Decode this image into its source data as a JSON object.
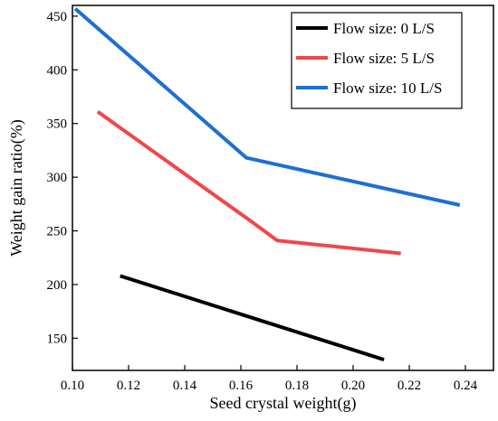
{
  "chart_data": {
    "type": "line",
    "title": "",
    "xlabel": "Seed crystal weight(g)",
    "ylabel": "Weight gain ratio(%)",
    "xlim": [
      0.1,
      0.25
    ],
    "ylim": [
      120,
      460
    ],
    "xticks": [
      "0.10",
      "0.12",
      "0.14",
      "0.16",
      "0.18",
      "0.20",
      "0.22",
      "0.24"
    ],
    "yticks": [
      "150",
      "200",
      "250",
      "300",
      "350",
      "400",
      "450"
    ],
    "grid": false,
    "legend_position": "top-right",
    "series": [
      {
        "name": "Flow size: 0 L/S",
        "color": "#000000",
        "x": [
          0.117,
          0.211
        ],
        "y": [
          208,
          130
        ]
      },
      {
        "name": "Flow size: 5 L/S",
        "color": "#f0474a",
        "x": [
          0.109,
          0.162,
          0.173,
          0.217
        ],
        "y": [
          361,
          262,
          241,
          229
        ]
      },
      {
        "name": "Flow size: 10 L/S",
        "color": "#1f6fd1",
        "x": [
          0.101,
          0.162,
          0.238
        ],
        "y": [
          457,
          318,
          274
        ]
      }
    ]
  }
}
